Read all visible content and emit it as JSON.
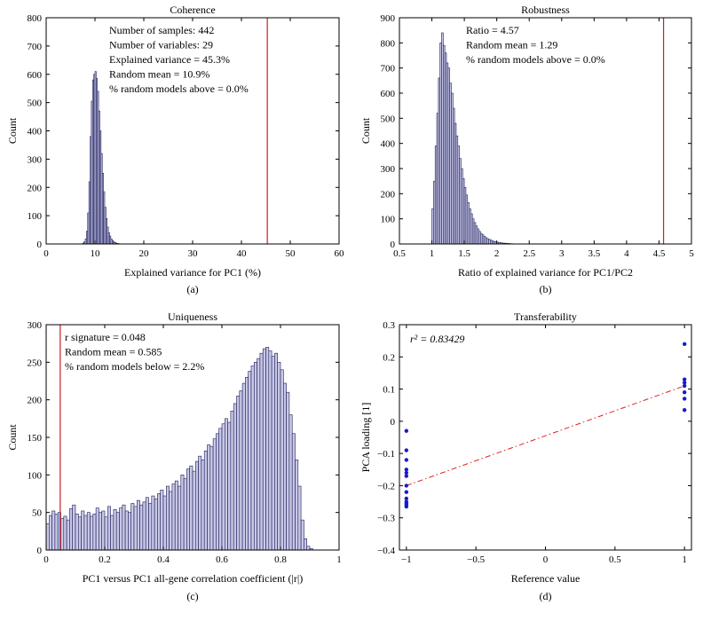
{
  "panels": {
    "a": {
      "label": "(a)"
    },
    "b": {
      "label": "(b)"
    },
    "c": {
      "label": "(c)"
    },
    "d": {
      "label": "(d)"
    }
  },
  "chart_data": [
    {
      "id": "coherence",
      "type": "histogram",
      "title": "Coherence",
      "xlabel": "Explained variance for PC1 (%)",
      "ylabel": "Count",
      "xlim": [
        0,
        60
      ],
      "ylim": [
        0,
        800
      ],
      "xticks": [
        0,
        10,
        20,
        30,
        40,
        50,
        60
      ],
      "yticks": [
        0,
        100,
        200,
        300,
        400,
        500,
        600,
        700,
        800
      ],
      "bin_start": 7.5,
      "bin_width": 0.25,
      "counts": [
        3,
        8,
        18,
        45,
        110,
        220,
        380,
        505,
        580,
        600,
        610,
        585,
        540,
        470,
        400,
        320,
        250,
        185,
        130,
        90,
        60,
        40,
        28,
        18,
        12,
        8,
        5,
        3,
        2,
        1
      ],
      "marker_value": 45.3,
      "marker_color": "#cc2020",
      "bar_fill": "#c8c8e6",
      "bar_stroke": "#1c1c5a",
      "annotations": [
        "Number of samples: 442",
        "Number of variables: 29",
        "Explained variance = 45.3%",
        "Random mean = 10.9%",
        "% random models above = 0.0%"
      ]
    },
    {
      "id": "robustness",
      "type": "histogram",
      "title": "Robustness",
      "xlabel": "Ratio of explained variance for PC1/PC2",
      "ylabel": "Count",
      "xlim": [
        0.5,
        5
      ],
      "ylim": [
        0,
        900
      ],
      "xticks": [
        0.5,
        1,
        1.5,
        2,
        2.5,
        3,
        3.5,
        4,
        4.5,
        5
      ],
      "yticks": [
        0,
        100,
        200,
        300,
        400,
        500,
        600,
        700,
        800,
        900
      ],
      "bin_start": 1.0,
      "bin_width": 0.025,
      "counts": [
        140,
        250,
        390,
        520,
        660,
        800,
        840,
        790,
        760,
        720,
        700,
        640,
        600,
        540,
        480,
        430,
        390,
        340,
        300,
        260,
        225,
        195,
        165,
        140,
        120,
        100,
        85,
        72,
        60,
        50,
        42,
        36,
        30,
        25,
        21,
        18,
        15,
        12,
        10,
        8,
        7,
        6,
        5,
        4,
        3,
        3,
        2,
        2,
        1,
        1
      ],
      "marker_value": 4.57,
      "marker_color": "#cc2020",
      "bar_fill": "#c8c8e6",
      "bar_stroke": "#1c1c5a",
      "annotations": [
        "Ratio = 4.57",
        "Random mean = 1.29",
        "% random models above = 0.0%"
      ]
    },
    {
      "id": "uniqueness",
      "type": "histogram",
      "title": "Uniqueness",
      "xlabel": "PC1 versus PC1 all-gene correlation coefficient (|r|)",
      "ylabel": "Count",
      "xlim": [
        0,
        1
      ],
      "ylim": [
        0,
        300
      ],
      "xticks": [
        0,
        0.2,
        0.4,
        0.6,
        0.8,
        1
      ],
      "yticks": [
        0,
        50,
        100,
        150,
        200,
        250,
        300
      ],
      "bin_start": 0.0,
      "bin_width": 0.01,
      "counts": [
        35,
        46,
        52,
        48,
        50,
        42,
        45,
        40,
        55,
        60,
        48,
        44,
        52,
        46,
        50,
        45,
        48,
        56,
        50,
        52,
        44,
        58,
        46,
        54,
        50,
        56,
        60,
        52,
        50,
        62,
        58,
        66,
        60,
        64,
        70,
        62,
        72,
        68,
        75,
        80,
        72,
        85,
        78,
        88,
        92,
        85,
        100,
        95,
        108,
        112,
        105,
        118,
        125,
        120,
        132,
        140,
        138,
        148,
        155,
        162,
        168,
        175,
        170,
        185,
        195,
        205,
        212,
        222,
        230,
        238,
        245,
        250,
        255,
        262,
        268,
        270,
        265,
        258,
        262,
        250,
        240,
        222,
        210,
        180,
        155,
        120,
        85,
        40,
        15,
        5,
        2
      ],
      "marker_value": 0.048,
      "marker_color": "#cc2020",
      "bar_fill": "#c8c8e6",
      "bar_stroke": "#1c1c5a",
      "annotations": [
        "r signature = 0.048",
        "Random mean = 0.585",
        "% random models below = 2.2%"
      ]
    },
    {
      "id": "transferability",
      "type": "scatter",
      "title": "Transferability",
      "xlabel": "Reference value",
      "ylabel": "PCA loading [1]",
      "xlim": [
        -1.05,
        1.05
      ],
      "ylim": [
        -0.4,
        0.3
      ],
      "xticks": [
        -1,
        -0.5,
        0,
        0.5,
        1
      ],
      "xtick_labels": [
        "−1",
        "−0.5",
        "0",
        "0.5",
        "1"
      ],
      "yticks": [
        -0.4,
        -0.3,
        -0.2,
        -0.1,
        0,
        0.1,
        0.2,
        0.3
      ],
      "ytick_labels": [
        "−0.4",
        "−0.3",
        "−0.2",
        "−0.1",
        "0",
        "0.1",
        "0.2",
        "0.3"
      ],
      "points": [
        {
          "x": -1,
          "y": -0.03
        },
        {
          "x": -1,
          "y": -0.09
        },
        {
          "x": -1,
          "y": -0.12
        },
        {
          "x": -1,
          "y": -0.15
        },
        {
          "x": -1,
          "y": -0.16
        },
        {
          "x": -1,
          "y": -0.17
        },
        {
          "x": -1,
          "y": -0.2
        },
        {
          "x": -1,
          "y": -0.22
        },
        {
          "x": -1,
          "y": -0.24
        },
        {
          "x": -1,
          "y": -0.25
        },
        {
          "x": -1,
          "y": -0.255
        },
        {
          "x": -1,
          "y": -0.26
        },
        {
          "x": -1,
          "y": -0.265
        },
        {
          "x": 1,
          "y": 0.24
        },
        {
          "x": 1,
          "y": 0.13
        },
        {
          "x": 1,
          "y": 0.12
        },
        {
          "x": 1,
          "y": 0.11
        },
        {
          "x": 1,
          "y": 0.09
        },
        {
          "x": 1,
          "y": 0.07
        },
        {
          "x": 1,
          "y": 0.035
        }
      ],
      "point_color": "#1a1acc",
      "fit_line": {
        "x": [
          -1,
          1
        ],
        "y": [
          -0.2,
          0.11
        ]
      },
      "fit_color": "#dd2222",
      "annotation": "r² = 0.83429"
    }
  ]
}
